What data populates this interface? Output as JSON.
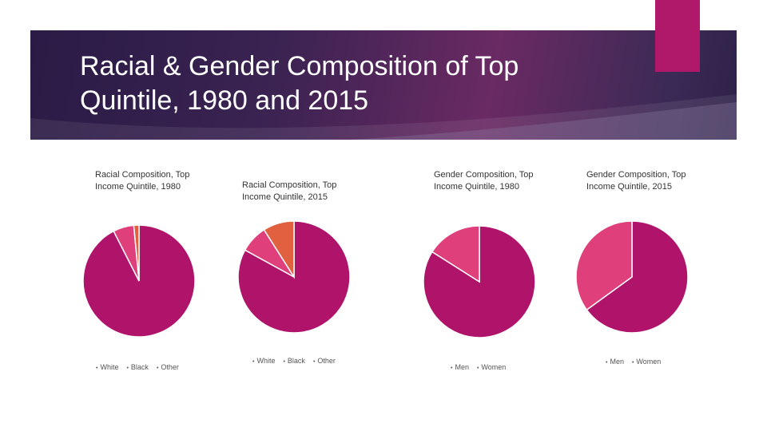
{
  "slide": {
    "title_line1": "Racial & Gender Composition of Top",
    "title_line2": "Quintile, 1980 and 2015",
    "colors": {
      "banner_dark": "#2a1b45",
      "banner_mid": "#6a2a63",
      "accent": "#b0186a"
    }
  },
  "chart_data": [
    {
      "type": "pie",
      "title": "Racial Composition, Top Income Quintile, 1980",
      "categories": [
        "White",
        "Black",
        "Other"
      ],
      "values": [
        92.5,
        6,
        1.5
      ],
      "colors": [
        "#b0136a",
        "#df3f7a",
        "#e06040"
      ],
      "legend_position": "bottom"
    },
    {
      "type": "pie",
      "title": "Racial Composition, Top Income Quintile, 2015",
      "categories": [
        "White",
        "Black",
        "Other"
      ],
      "values": [
        83,
        8,
        9
      ],
      "colors": [
        "#b0136a",
        "#df3f7a",
        "#e06040"
      ],
      "legend_position": "bottom"
    },
    {
      "type": "pie",
      "title": "Gender Composition, Top Income Quintile, 1980",
      "categories": [
        "Men",
        "Women"
      ],
      "values": [
        84,
        16
      ],
      "colors": [
        "#b0136a",
        "#df3f7a"
      ],
      "legend_position": "bottom"
    },
    {
      "type": "pie",
      "title": "Gender Composition, Top Income Quintile, 2015",
      "categories": [
        "Men",
        "Women"
      ],
      "values": [
        65,
        35
      ],
      "colors": [
        "#b0136a",
        "#df3f7a"
      ],
      "legend_position": "bottom"
    }
  ]
}
